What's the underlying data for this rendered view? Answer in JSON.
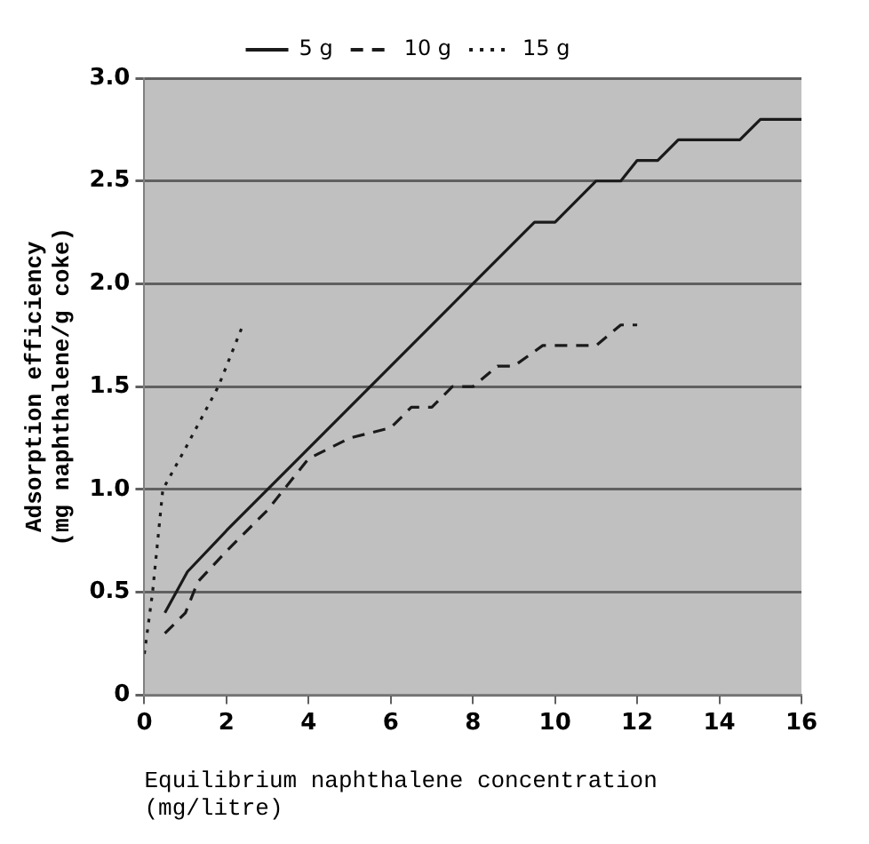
{
  "chart_data": {
    "type": "line",
    "xlabel": "Equilibrium naphthalene concentration\n(mg/litre)",
    "ylabel": "Adsorption efficiency\n(mg naphthalene/g coke)",
    "xlim": [
      0,
      16
    ],
    "xticks": [
      0,
      2,
      4,
      6,
      8,
      10,
      12,
      14,
      16
    ],
    "ylim": [
      0,
      3
    ],
    "yticks": [
      0,
      0.5,
      {
        "value": 1,
        "label": "1.0"
      },
      1.5,
      {
        "value": 2,
        "label": "2.0"
      },
      2.5,
      {
        "value": 3,
        "label": "3.0"
      }
    ],
    "grid": "y",
    "legend": "top",
    "marker": "none",
    "series": [
      {
        "name": "5 g",
        "color": "#1a1a1a",
        "line_style": "solid",
        "x": [
          0.5,
          1.05,
          2,
          8,
          9.5,
          10,
          11,
          11.6,
          12,
          12.5,
          13,
          14.5,
          15,
          16
        ],
        "values": [
          0.4,
          0.6,
          0.8,
          2.0,
          2.3,
          2.3,
          2.5,
          2.5,
          2.6,
          2.6,
          2.7,
          2.7,
          2.8,
          2.8
        ]
      },
      {
        "name": "10 g",
        "color": "#1a1a1a",
        "line_style": "dashed",
        "x": [
          0.5,
          1,
          1.3,
          2,
          3,
          4,
          5,
          6,
          6.5,
          7,
          7.5,
          8,
          8.6,
          9,
          9.7,
          11,
          11.6,
          12
        ],
        "values": [
          0.3,
          0.4,
          0.55,
          0.7,
          0.9,
          1.15,
          1.25,
          1.3,
          1.4,
          1.4,
          1.5,
          1.5,
          1.6,
          1.6,
          1.7,
          1.7,
          1.8,
          1.8
        ]
      },
      {
        "name": "15 g",
        "color": "#1a1a1a",
        "line_style": "dotted",
        "x": [
          0,
          0.2,
          0.45,
          1.0,
          1.8,
          2.4
        ],
        "values": [
          0.2,
          0.5,
          1.0,
          1.2,
          1.5,
          1.8
        ]
      }
    ]
  }
}
